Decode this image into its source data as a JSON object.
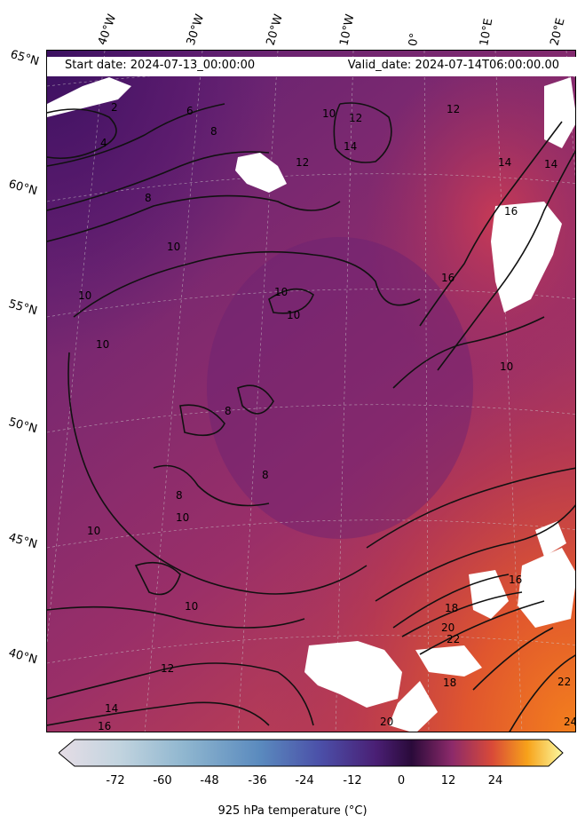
{
  "header": {
    "start_date": "Start date: 2024-07-13_00:00:00",
    "valid_date": "Valid_date: 2024-07-14T06:00:00.00"
  },
  "longitude_labels": [
    "40°W",
    "30°W",
    "20°W",
    "10°W",
    "0°",
    "10°E",
    "20°E"
  ],
  "latitude_labels": [
    "65°N",
    "60°N",
    "55°N",
    "50°N",
    "45°N",
    "40°N"
  ],
  "contour_labels": [
    "2",
    "4",
    "6",
    "8",
    "8",
    "10",
    "10",
    "10",
    "10",
    "10",
    "10",
    "12",
    "12",
    "12",
    "14",
    "14",
    "14",
    "16",
    "16",
    "16",
    "18",
    "18",
    "20",
    "20",
    "22",
    "22",
    "24",
    "8",
    "8",
    "8",
    "10",
    "10",
    "12",
    "14",
    "16",
    "10",
    "10"
  ],
  "colorbar": {
    "ticks": [
      "-72",
      "-60",
      "-48",
      "-36",
      "-24",
      "-12",
      "0",
      "12",
      "24"
    ],
    "title": "925 hPa temperature ( $^{\\circ}$C)",
    "title_display": "925 hPa temperature (°C)",
    "colormap": "inferno-like with light-blue negative range"
  },
  "colors": {
    "cold_purple": "#4a1a6b",
    "mid_magenta": "#8e2a6e",
    "warm_red": "#c8414e",
    "hot_orange": "#f07a20",
    "land_mask": "#ffffff"
  }
}
